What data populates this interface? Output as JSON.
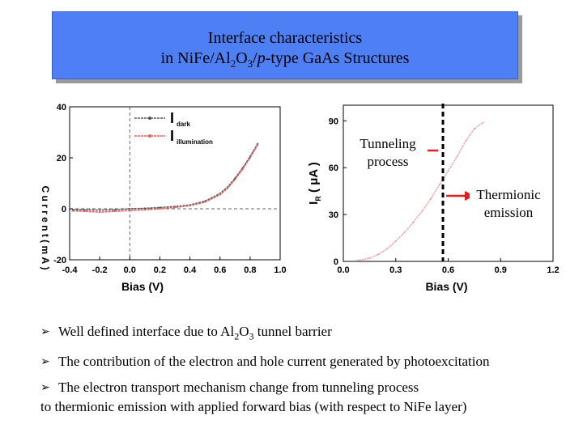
{
  "slide": {
    "title_line1": "Interface characteristics",
    "title_line2_prefix": "in NiFe/Al",
    "title_line2_sub1": "2",
    "title_line2_mid": "O",
    "title_line2_sub2": "3",
    "title_line2_slash": "/",
    "title_line2_italic": "p",
    "title_line2_suffix": "-type GaAs Structures"
  },
  "annotations": {
    "tunneling_line1": "Tunneling",
    "tunneling_line2": "process",
    "thermionic_line1": "Thermionic",
    "thermionic_line2": "emission",
    "arrow_color": "#e02020",
    "divider_color": "#000000"
  },
  "bullets": [
    {
      "prefix": "Well defined interface due to Al",
      "sub1": "2",
      "mid": "O",
      "sub2": "3",
      "suffix": " tunnel barrier"
    },
    {
      "text": "The contribution of the electron and hole current generated by photoexcitation"
    },
    {
      "line1": "The electron transport mechanism change from tunneling process",
      "line2": "to thermionic emission with applied forward bias (with respect to NiFe layer)"
    }
  ],
  "chart_data": [
    {
      "type": "line",
      "xlabel": "Bias (V)",
      "ylabel": "C u r r e n t ( m A )",
      "xlim": [
        -0.4,
        1.0
      ],
      "ylim": [
        -20,
        40
      ],
      "xticks": [
        "-0.4",
        "-0.2",
        "0.0",
        "0.2",
        "0.4",
        "0.6",
        "0.8",
        "1.0"
      ],
      "yticks": [
        "-20",
        "0",
        "20",
        "40"
      ],
      "legend": [
        {
          "label": "I",
          "sub": "dark",
          "color": "#555555"
        },
        {
          "label": "I",
          "sub": "illumination",
          "color": "#e06060"
        }
      ],
      "series": [
        {
          "name": "I dark",
          "color": "#555555",
          "x": [
            -0.38,
            -0.3,
            -0.2,
            -0.1,
            0.0,
            0.1,
            0.2,
            0.3,
            0.4,
            0.5,
            0.6,
            0.65,
            0.7,
            0.75,
            0.8,
            0.85
          ],
          "y": [
            -0.3,
            -0.4,
            -0.5,
            -0.4,
            0.0,
            0.2,
            0.5,
            0.9,
            1.5,
            3.0,
            6.0,
            8.5,
            12.0,
            16.0,
            20.5,
            25.5
          ]
        },
        {
          "name": "I illumination",
          "color": "#e06060",
          "x": [
            -0.38,
            -0.3,
            -0.2,
            -0.1,
            0.0,
            0.1,
            0.2,
            0.3,
            0.4,
            0.5,
            0.6,
            0.65,
            0.7,
            0.75,
            0.8,
            0.85
          ],
          "y": [
            -0.8,
            -1.0,
            -1.3,
            -1.0,
            -0.7,
            -0.4,
            0.0,
            0.5,
            1.2,
            2.6,
            5.5,
            8.0,
            11.5,
            15.5,
            20.0,
            25.0
          ]
        }
      ]
    },
    {
      "type": "line",
      "xlabel": "Bias (V)",
      "ylabel": "I",
      "ylabel_sub": "R",
      "ylabel_unit": " ( μA )",
      "xlim": [
        0.0,
        1.2
      ],
      "ylim": [
        0,
        100
      ],
      "xticks": [
        "0.0",
        "0.3",
        "0.6",
        "0.9",
        "1.2"
      ],
      "yticks": [
        "0",
        "30",
        "60",
        "90"
      ],
      "divider_x": 0.57,
      "series": [
        {
          "name": "",
          "color": "#e8a0a0",
          "x": [
            0.08,
            0.15,
            0.2,
            0.25,
            0.3,
            0.35,
            0.4,
            0.45,
            0.5,
            0.55,
            0.6,
            0.65,
            0.7,
            0.75,
            0.8
          ],
          "y": [
            0.5,
            2.0,
            4.5,
            8.0,
            13.0,
            18.5,
            25.0,
            32.0,
            40.0,
            49.0,
            58.0,
            67.0,
            77.0,
            85.0,
            89.0
          ]
        }
      ]
    }
  ]
}
